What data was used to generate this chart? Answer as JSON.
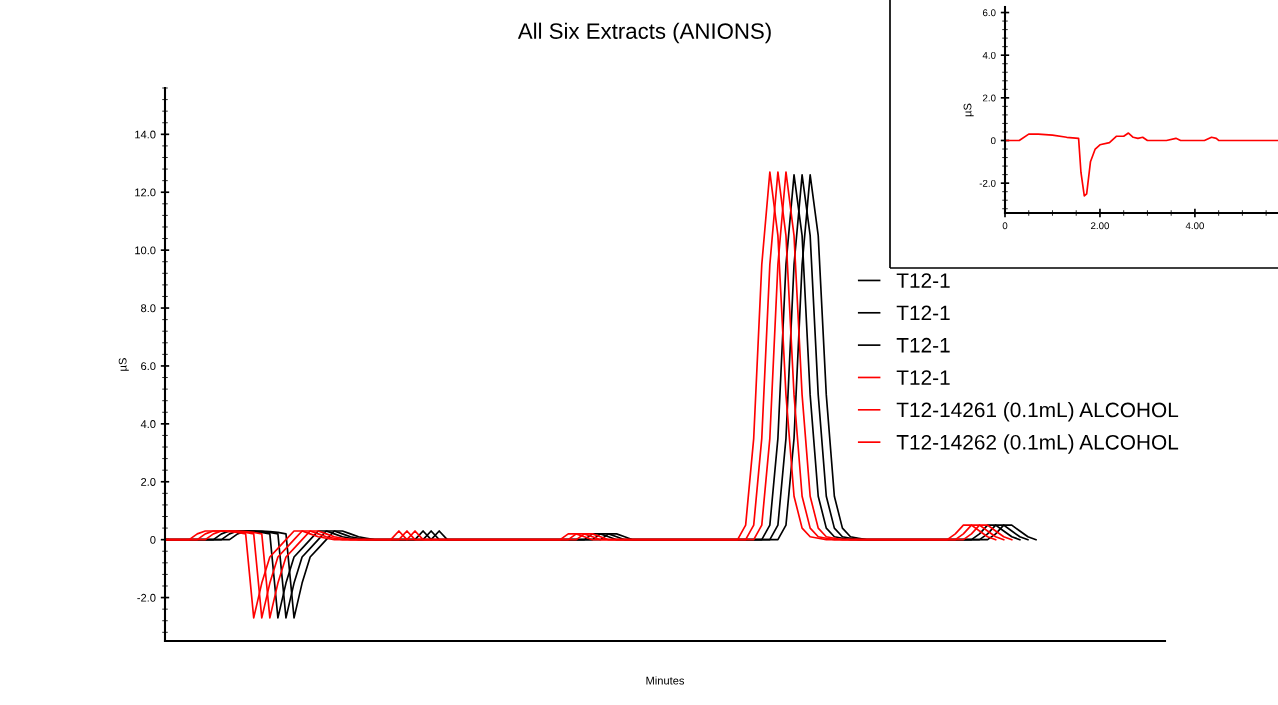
{
  "chart_data": [
    {
      "type": "line",
      "title": "All Six Extracts (ANIONS)",
      "xlabel": "Minutes",
      "ylabel": "µS",
      "legend": "right",
      "categories": [
        null,
        null,
        null,
        null,
        null,
        null,
        null,
        null,
        null,
        null,
        null,
        null,
        null,
        null,
        null,
        null,
        null,
        null,
        null,
        null,
        null,
        null,
        null,
        null,
        null,
        null,
        null,
        null,
        null,
        null,
        null,
        null,
        null,
        null,
        null,
        null,
        null,
        null,
        null,
        null,
        null,
        null,
        null,
        null,
        null,
        null,
        null,
        null,
        null,
        null,
        null,
        null,
        null,
        null,
        null,
        null,
        null,
        null,
        null,
        null,
        null,
        null,
        null,
        null,
        null,
        null,
        null,
        null,
        null,
        null,
        null,
        null,
        null,
        null,
        null,
        null,
        null,
        null,
        null,
        null,
        null,
        null,
        null,
        null,
        null,
        null,
        null,
        null,
        null,
        null,
        null,
        null,
        null,
        null,
        null,
        null,
        null,
        null,
        null,
        null,
        null,
        null,
        null,
        null,
        null,
        null,
        null,
        null,
        null,
        null,
        null,
        null,
        null,
        null,
        null,
        null,
        null,
        null,
        null,
        null,
        null,
        null,
        null,
        null,
        null
      ],
      "ylim": [
        -3.5,
        15.6
      ],
      "yticks": [
        {
          "value": -2,
          "label": "-2.0"
        },
        0,
        {
          "value": 2,
          "label": "2.0"
        },
        {
          "value": 4,
          "label": "4.0"
        },
        {
          "value": 6,
          "label": "6.0"
        },
        {
          "value": 8,
          "label": "8.0"
        },
        {
          "value": 10,
          "label": "10.0"
        },
        {
          "value": 12,
          "label": "12.0"
        },
        {
          "value": 14,
          "label": "14.0"
        }
      ],
      "series": [
        {
          "name": "T12-1",
          "color": "#000000",
          "values": [
            0,
            0,
            0,
            0,
            0,
            0,
            0,
            0,
            0,
            0.2,
            0.3,
            0.3,
            0.3,
            0.28,
            0.25,
            0.2,
            -2.7,
            -1.5,
            -0.6,
            -0.3,
            0,
            0.3,
            0.3,
            0.2,
            0.1,
            0.05,
            0,
            0,
            0,
            0,
            0,
            0,
            0,
            0,
            0.3,
            0,
            0,
            0,
            0,
            0,
            0,
            0,
            0,
            0,
            0,
            0,
            0,
            0,
            0,
            0,
            0,
            0,
            0,
            0,
            0,
            0.2,
            0.2,
            0.1,
            0,
            0,
            0,
            0,
            0,
            0,
            0,
            0,
            0,
            0,
            0,
            0,
            0,
            0,
            0,
            0,
            0,
            0,
            0,
            0.5,
            3.5,
            9.5,
            12.6,
            10.5,
            5,
            1.5,
            0.4,
            0.1,
            0.05,
            0,
            0,
            0,
            0,
            0,
            0,
            0,
            0,
            0,
            0,
            0,
            0,
            0,
            0,
            0,
            0,
            0.2,
            0.5,
            0.5,
            0.3,
            0.1,
            0,
            null,
            null,
            null,
            null,
            null,
            null,
            null,
            null,
            null,
            null,
            null,
            null,
            null,
            null,
            null,
            null
          ]
        },
        {
          "name": "T12-1",
          "color": "#000000",
          "values": [
            0,
            0,
            0,
            0,
            0,
            0,
            0,
            0,
            0.2,
            0.3,
            0.3,
            0.3,
            0.28,
            0.25,
            0.2,
            -2.7,
            -1.5,
            -0.6,
            -0.3,
            0,
            0.3,
            0.3,
            0.2,
            0.1,
            0.05,
            0,
            0,
            0,
            0,
            0,
            0,
            0,
            0,
            0.3,
            0,
            0,
            0,
            0,
            0,
            0,
            0,
            0,
            0,
            0,
            0,
            0,
            0,
            0,
            0,
            0,
            0,
            0,
            0,
            0,
            0.2,
            0.2,
            0.1,
            0,
            0,
            0,
            0,
            0,
            0,
            0,
            0,
            0,
            0,
            0,
            0,
            0,
            0,
            0,
            0,
            0,
            0,
            0,
            0.5,
            3.5,
            9.5,
            12.6,
            10.5,
            5,
            1.5,
            0.4,
            0.1,
            0.05,
            0,
            0,
            0,
            0,
            0,
            0,
            0,
            0,
            0,
            0,
            0,
            0,
            0,
            0,
            0,
            0,
            0.2,
            0.5,
            0.5,
            0.3,
            0.1,
            0,
            null,
            null,
            null,
            null,
            null,
            null,
            null,
            null,
            null,
            null,
            null,
            null,
            null,
            null,
            null,
            null,
            null
          ]
        },
        {
          "name": "T12-1",
          "color": "#000000",
          "values": [
            0,
            0,
            0,
            0,
            0,
            0,
            0,
            0.2,
            0.3,
            0.3,
            0.3,
            0.28,
            0.25,
            0.2,
            -2.7,
            -1.5,
            -0.6,
            -0.3,
            0,
            0.3,
            0.3,
            0.2,
            0.1,
            0.05,
            0,
            0,
            0,
            0,
            0,
            0,
            0,
            0,
            0.3,
            0,
            0,
            0,
            0,
            0,
            0,
            0,
            0,
            0,
            0,
            0,
            0,
            0,
            0,
            0,
            0,
            0,
            0,
            0,
            0,
            0.2,
            0.2,
            0.1,
            0,
            0,
            0,
            0,
            0,
            0,
            0,
            0,
            0,
            0,
            0,
            0,
            0,
            0,
            0,
            0,
            0,
            0,
            0,
            0.5,
            3.5,
            9.5,
            12.6,
            10.5,
            5,
            1.5,
            0.4,
            0.1,
            0.05,
            0,
            0,
            0,
            0,
            0,
            0,
            0,
            0,
            0,
            0,
            0,
            0,
            0,
            0,
            0,
            0,
            0.2,
            0.5,
            0.5,
            0.3,
            0.1,
            0,
            null,
            null,
            null,
            null,
            null,
            null,
            null,
            null,
            null,
            null,
            null,
            null,
            null,
            null,
            null,
            null,
            null,
            null
          ]
        },
        {
          "name": "T12-1",
          "color": "#ff0000",
          "values": [
            0,
            0,
            0,
            0,
            0,
            0,
            0.2,
            0.3,
            0.3,
            0.3,
            0.28,
            0.25,
            0.2,
            -2.7,
            -1.5,
            -0.6,
            -0.3,
            0,
            0.3,
            0.3,
            0.2,
            0.1,
            0.05,
            0,
            0,
            0,
            0,
            0,
            0,
            0,
            0,
            0.3,
            0,
            0,
            0,
            0,
            0,
            0,
            0,
            0,
            0,
            0,
            0,
            0,
            0,
            0,
            0,
            0,
            0,
            0,
            0,
            0,
            0.2,
            0.2,
            0.1,
            0,
            0,
            0,
            0,
            0,
            0,
            0,
            0,
            0,
            0,
            0,
            0,
            0,
            0,
            0,
            0,
            0,
            0,
            0,
            0.5,
            3.5,
            9.5,
            12.7,
            10.5,
            5,
            1.5,
            0.4,
            0.1,
            0.05,
            0,
            0,
            0,
            0,
            0,
            0,
            0,
            0,
            0,
            0,
            0,
            0,
            0,
            0,
            0,
            0,
            0.2,
            0.5,
            0.5,
            0.3,
            0.1,
            0,
            null,
            null,
            null,
            null,
            null,
            null,
            null,
            null,
            null,
            null,
            null,
            null,
            null,
            null,
            null,
            null,
            null,
            null,
            null
          ]
        },
        {
          "name": "T12-14261 (0.1mL) ALCOHOL",
          "color": "#ff0000",
          "values": [
            0,
            0,
            0,
            0,
            0,
            0.2,
            0.3,
            0.3,
            0.3,
            0.28,
            0.25,
            0.2,
            -2.7,
            -1.5,
            -0.6,
            -0.3,
            0,
            0.3,
            0.3,
            0.2,
            0.1,
            0.05,
            0,
            0,
            0,
            0,
            0,
            0,
            0,
            0,
            0.3,
            0,
            0,
            0,
            0,
            0,
            0,
            0,
            0,
            0,
            0,
            0,
            0,
            0,
            0,
            0,
            0,
            0,
            0,
            0,
            0,
            0.2,
            0.2,
            0.1,
            0,
            0,
            0,
            0,
            0,
            0,
            0,
            0,
            0,
            0,
            0,
            0,
            0,
            0,
            0,
            0,
            0,
            0,
            0,
            0.5,
            3.5,
            9.5,
            12.7,
            10.5,
            5,
            1.5,
            0.4,
            0.1,
            0.05,
            0,
            0,
            0,
            0,
            0,
            0,
            0,
            0,
            0,
            0,
            0,
            0,
            0,
            0,
            0,
            0,
            0.2,
            0.5,
            0.5,
            0.3,
            0.1,
            0,
            null,
            null,
            null,
            null,
            null,
            null,
            null,
            null,
            null,
            null,
            null,
            null,
            null,
            null,
            null,
            null,
            null,
            null,
            null,
            null
          ]
        },
        {
          "name": "T12-14262 (0.1mL) ALCOHOL",
          "color": "#ff0000",
          "values": [
            0,
            0,
            0,
            0,
            0.2,
            0.3,
            0.3,
            0.3,
            0.28,
            0.25,
            0.2,
            -2.7,
            -1.5,
            -0.6,
            -0.3,
            0,
            0.3,
            0.3,
            0.2,
            0.1,
            0.05,
            0,
            0,
            0,
            0,
            0,
            0,
            0,
            0,
            0.3,
            0,
            0,
            0,
            0,
            0,
            0,
            0,
            0,
            0,
            0,
            0,
            0,
            0,
            0,
            0,
            0,
            0,
            0,
            0,
            0,
            0.2,
            0.2,
            0.1,
            0,
            0,
            0,
            0,
            0,
            0,
            0,
            0,
            0,
            0,
            0,
            0,
            0,
            0,
            0,
            0,
            0,
            0,
            0,
            0.5,
            3.5,
            9.5,
            12.7,
            10.5,
            5,
            1.5,
            0.4,
            0.1,
            0.05,
            0,
            0,
            0,
            0,
            0,
            0,
            0,
            0,
            0,
            0,
            0,
            0,
            0,
            0,
            0,
            0,
            0.2,
            0.5,
            0.5,
            0.3,
            0.1,
            0,
            null,
            null,
            null,
            null,
            null,
            null,
            null,
            null,
            null,
            null,
            null,
            null,
            null,
            null,
            null,
            null,
            null,
            null,
            null,
            null,
            null
          ]
        }
      ]
    },
    {
      "type": "line",
      "ylabel": "µS",
      "xlim": [
        0,
        5.75
      ],
      "ylim": [
        -3.4,
        6.26
      ],
      "xticks": [
        0,
        {
          "value": 2,
          "label": "2.00"
        },
        {
          "value": 4,
          "label": "4.00"
        }
      ],
      "yticks": [
        {
          "value": -2,
          "label": "-2.0"
        },
        0,
        {
          "value": 2,
          "label": "2.0"
        },
        {
          "value": 4,
          "label": "4.0"
        },
        {
          "value": 6,
          "label": "6.0"
        }
      ],
      "series": [
        {
          "color": "#ff0000",
          "x": [
            0,
            0.3,
            0.5,
            0.7,
            1.0,
            1.3,
            1.55,
            1.6,
            1.67,
            1.72,
            1.8,
            1.9,
            2.0,
            2.2,
            2.35,
            2.5,
            2.6,
            2.7,
            2.8,
            2.9,
            3.0,
            3.4,
            3.6,
            3.7,
            4.2,
            4.35,
            4.45,
            4.5,
            5.75
          ],
          "values": [
            0,
            0,
            0.3,
            0.3,
            0.25,
            0.15,
            0.1,
            -1.5,
            -2.6,
            -2.5,
            -1.0,
            -0.4,
            -0.2,
            -0.1,
            0.2,
            0.2,
            0.35,
            0.15,
            0.1,
            0.15,
            0,
            0,
            0.1,
            0,
            0,
            0.15,
            0.1,
            0,
            0
          ]
        }
      ]
    }
  ]
}
